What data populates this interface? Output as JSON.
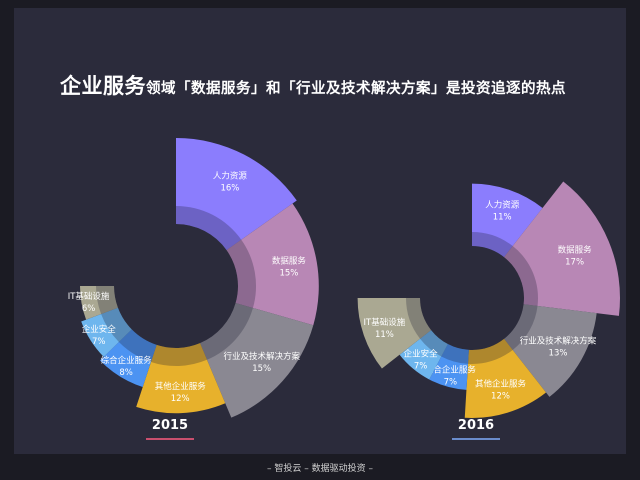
{
  "title": {
    "highlight": "企业服务",
    "rest": "领域「数据服务」和「行业及技术解决方案」是投资追逐的热点"
  },
  "footer": "– 智投云 – 数据驱动投资 –",
  "chart_data": [
    {
      "type": "pie",
      "year": "2015",
      "year_underline_color": "#c94f6e",
      "slices": [
        {
          "name": "人力资源",
          "label": "16%",
          "value": 16,
          "color": "#8b7dfd"
        },
        {
          "name": "数据服务",
          "label": "15%",
          "value": 15,
          "color": "#b887b5"
        },
        {
          "name": "行业及技术解决方案",
          "label": "15%",
          "value": 15,
          "color": "#8a8892"
        },
        {
          "name": "其他企业服务",
          "label": "12%",
          "value": 12,
          "color": "#e7b12c"
        },
        {
          "name": "综合企业服务",
          "label": "8%",
          "value": 8,
          "color": "#4c93f2"
        },
        {
          "name": "企业安全",
          "label": "7%",
          "value": 7,
          "color": "#6eb6ee"
        },
        {
          "name": "IT基础设施",
          "label": "6%",
          "value": 6,
          "color": "#aaa892"
        }
      ]
    },
    {
      "type": "pie",
      "year": "2016",
      "year_underline_color": "#6a8ccc",
      "slices": [
        {
          "name": "人力资源",
          "label": "11%",
          "value": 11,
          "color": "#8b7dfd"
        },
        {
          "name": "数据服务",
          "label": "17%",
          "value": 17,
          "color": "#b887b5"
        },
        {
          "name": "行业及技术解决方案",
          "label": "13%",
          "value": 13,
          "color": "#8a8892"
        },
        {
          "name": "其他企业服务",
          "label": "12%",
          "value": 12,
          "color": "#e7b12c"
        },
        {
          "name": "综合企业服务",
          "label": "7%",
          "value": 7,
          "color": "#4c93f2"
        },
        {
          "name": "企业安全",
          "label": "7%",
          "value": 7,
          "color": "#6eb6ee"
        },
        {
          "name": "IT基础设施",
          "label": "11%",
          "value": 11,
          "color": "#aaa892"
        }
      ]
    }
  ]
}
